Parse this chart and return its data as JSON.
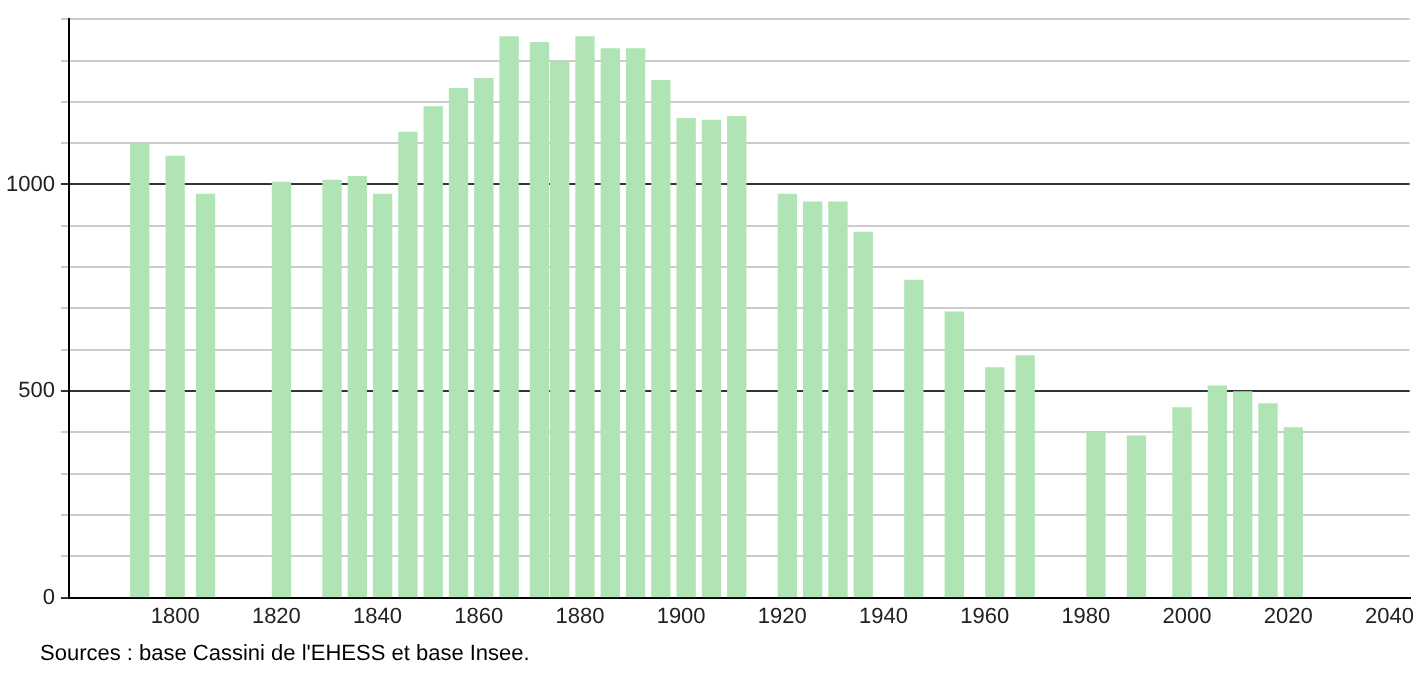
{
  "chart_data": {
    "type": "bar",
    "color": "#b0e4b4",
    "x": [
      1793,
      1800,
      1806,
      1821,
      1831,
      1836,
      1841,
      1846,
      1851,
      1856,
      1861,
      1866,
      1872,
      1876,
      1881,
      1886,
      1891,
      1896,
      1901,
      1906,
      1911,
      1921,
      1926,
      1931,
      1936,
      1946,
      1954,
      1962,
      1968,
      1982,
      1990,
      1999,
      2006,
      2011,
      2016,
      2021
    ],
    "values": [
      1097,
      1068,
      976,
      1005,
      1010,
      1019,
      976,
      1126,
      1188,
      1232,
      1256,
      1357,
      1343,
      1295,
      1357,
      1328,
      1328,
      1251,
      1159,
      1155,
      1164,
      976,
      957,
      957,
      884,
      768,
      691,
      556,
      585,
      401,
      391,
      459,
      512,
      498,
      469,
      411
    ],
    "xlim": [
      1779,
      2044
    ],
    "xticks": [
      1800,
      1820,
      1840,
      1860,
      1880,
      1900,
      1920,
      1940,
      1960,
      1980,
      2000,
      2020,
      2040
    ],
    "ylim": [
      0,
      1400
    ],
    "yticks": [
      0,
      {
        "value": 100,
        "label": null
      },
      {
        "value": 200,
        "label": null
      },
      {
        "value": 300,
        "label": null
      },
      {
        "value": 400,
        "label": null
      },
      500,
      {
        "value": 600,
        "label": null
      },
      {
        "value": 700,
        "label": null
      },
      {
        "value": 800,
        "label": null
      },
      {
        "value": 900,
        "label": null
      },
      1000,
      {
        "value": 1100,
        "label": null
      },
      {
        "value": 1200,
        "label": null
      },
      {
        "value": 1300,
        "label": null
      },
      {
        "value": 1400,
        "label": null
      }
    ],
    "grid": "y",
    "annotations": [
      "Sources : base Cassini de l'EHESS et base Insee."
    ]
  }
}
